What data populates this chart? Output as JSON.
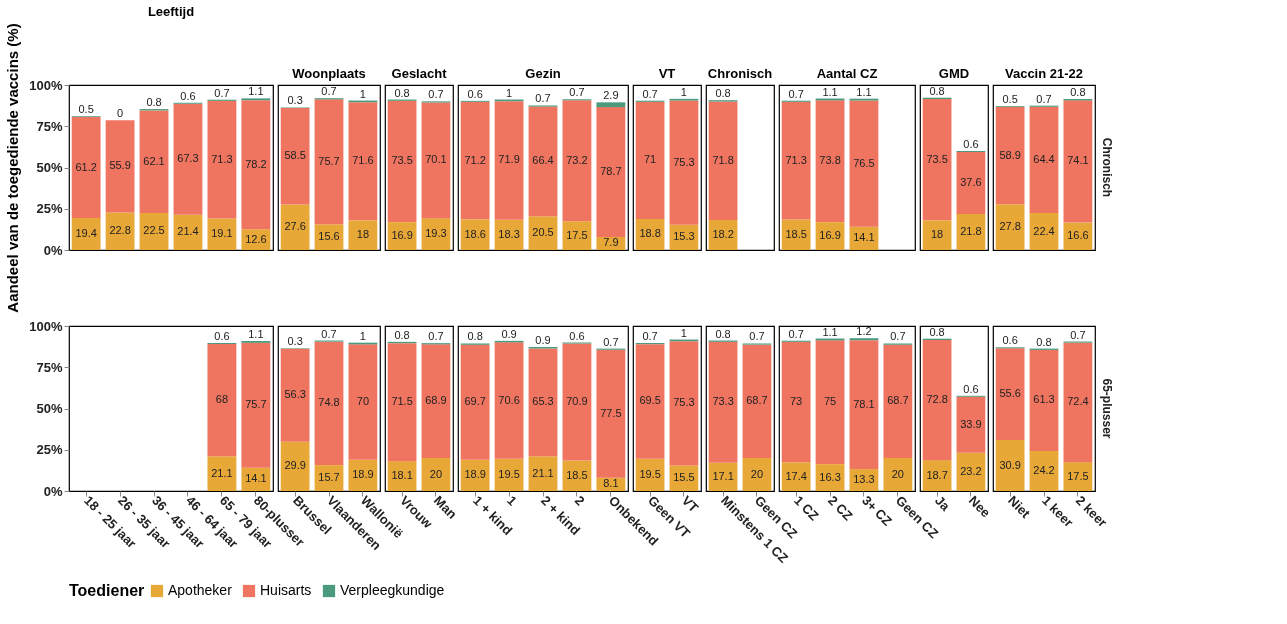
{
  "chart_data": [
    {
      "type": "bar",
      "stacked": true,
      "title": "Leeftijd",
      "ylabel": "Aandeel van de toegediende vaccins (%)",
      "legend": "bottom",
      "legend_title": "Toediener",
      "tick_labels": "y",
      "data_labels": true,
      "ylim": [
        0,
        100
      ],
      "yticks": [
        {
          "value": 0,
          "label": "0%"
        },
        {
          "value": 25,
          "label": "25%"
        },
        {
          "value": 50,
          "label": "50%"
        },
        {
          "value": 75,
          "label": "75%"
        },
        {
          "value": 100,
          "label": "100%"
        }
      ],
      "categories": [
        "18 - 25 jaar",
        "26 - 35 jaar",
        "36 - 45 jaar",
        "46 - 64 jaar",
        "65 - 79 jaar",
        "80-plusser"
      ],
      "series": [
        {
          "name": "Apotheker",
          "color": "#e8a838",
          "values": [
            19.4,
            22.8,
            22.5,
            21.4,
            19.1,
            12.6
          ]
        },
        {
          "name": "Huisarts",
          "color": "#f07561",
          "values": [
            61.2,
            55.9,
            62.1,
            67.3,
            71.3,
            78.2
          ]
        },
        {
          "name": "Verpleegkundige",
          "color": "#4a9a7e",
          "values": [
            0.5,
            0,
            0.8,
            0.6,
            0.7,
            1.1
          ]
        }
      ]
    },
    {
      "type": "bar",
      "stacked": true,
      "title": "Woonplaats",
      "tick_labels": false,
      "data_labels": true,
      "ylim": [
        0,
        100
      ],
      "categories": [
        "Brussel",
        "Vlaanderen",
        "Wallonië"
      ],
      "series": [
        {
          "name": "Apotheker",
          "color": "#e8a838",
          "values": [
            27.6,
            15.6,
            18
          ]
        },
        {
          "name": "Huisarts",
          "color": "#f07561",
          "values": [
            58.5,
            75.7,
            71.6
          ]
        },
        {
          "name": "Verpleegkundige",
          "color": "#4a9a7e",
          "values": [
            0.3,
            0.7,
            1
          ]
        }
      ]
    },
    {
      "type": "bar",
      "stacked": true,
      "title": "Geslacht",
      "tick_labels": false,
      "data_labels": true,
      "ylim": [
        0,
        100
      ],
      "categories": [
        "Vrouw",
        "Man"
      ],
      "series": [
        {
          "name": "Apotheker",
          "color": "#e8a838",
          "values": [
            16.9,
            19.3
          ]
        },
        {
          "name": "Huisarts",
          "color": "#f07561",
          "values": [
            73.5,
            70.1
          ]
        },
        {
          "name": "Verpleegkundige",
          "color": "#4a9a7e",
          "values": [
            0.8,
            0.7
          ]
        }
      ]
    },
    {
      "type": "bar",
      "stacked": true,
      "title": "Gezin",
      "tick_labels": false,
      "data_labels": true,
      "ylim": [
        0,
        100
      ],
      "categories": [
        "1 + kind",
        "1",
        "2 + kind",
        "2",
        "Onbekend"
      ],
      "series": [
        {
          "name": "Apotheker",
          "color": "#e8a838",
          "values": [
            18.6,
            18.3,
            20.5,
            17.5,
            7.9
          ]
        },
        {
          "name": "Huisarts",
          "color": "#f07561",
          "values": [
            71.2,
            71.9,
            66.4,
            73.2,
            78.7
          ]
        },
        {
          "name": "Verpleegkundige",
          "color": "#4a9a7e",
          "values": [
            0.6,
            1,
            0.7,
            0.7,
            2.9
          ]
        }
      ]
    },
    {
      "type": "bar",
      "stacked": true,
      "title": "VT",
      "tick_labels": false,
      "data_labels": true,
      "ylim": [
        0,
        100
      ],
      "categories": [
        "Geen VT",
        "VT"
      ],
      "series": [
        {
          "name": "Apotheker",
          "color": "#e8a838",
          "values": [
            18.8,
            15.3
          ]
        },
        {
          "name": "Huisarts",
          "color": "#f07561",
          "values": [
            71,
            75.3
          ]
        },
        {
          "name": "Verpleegkundige",
          "color": "#4a9a7e",
          "values": [
            0.7,
            1
          ]
        }
      ]
    },
    {
      "type": "bar",
      "stacked": true,
      "title": "Chronisch",
      "tick_labels": false,
      "data_labels": true,
      "ylim": [
        0,
        100
      ],
      "categories": [
        "Minstens 1 CZ",
        "Geen CZ"
      ],
      "series": [
        {
          "name": "Apotheker",
          "color": "#e8a838",
          "values": [
            18.2,
            null
          ]
        },
        {
          "name": "Huisarts",
          "color": "#f07561",
          "values": [
            71.8,
            null
          ]
        },
        {
          "name": "Verpleegkundige",
          "color": "#4a9a7e",
          "values": [
            0.8,
            null
          ]
        }
      ]
    },
    {
      "type": "bar",
      "stacked": true,
      "title": "Aantal CZ",
      "tick_labels": false,
      "data_labels": true,
      "ylim": [
        0,
        100
      ],
      "categories": [
        "1 CZ",
        "2 CZ",
        "3+ CZ",
        "Geen CZ"
      ],
      "series": [
        {
          "name": "Apotheker",
          "color": "#e8a838",
          "values": [
            18.5,
            16.9,
            14.1,
            null
          ]
        },
        {
          "name": "Huisarts",
          "color": "#f07561",
          "values": [
            71.3,
            73.8,
            76.5,
            null
          ]
        },
        {
          "name": "Verpleegkundige",
          "color": "#4a9a7e",
          "values": [
            0.7,
            1.1,
            1.1,
            null
          ]
        }
      ]
    },
    {
      "type": "bar",
      "stacked": true,
      "title": "GMD",
      "tick_labels": false,
      "data_labels": true,
      "ylim": [
        0,
        100
      ],
      "categories": [
        "Ja",
        "Nee"
      ],
      "series": [
        {
          "name": "Apotheker",
          "color": "#e8a838",
          "values": [
            18,
            21.8
          ]
        },
        {
          "name": "Huisarts",
          "color": "#f07561",
          "values": [
            73.5,
            37.6
          ]
        },
        {
          "name": "Verpleegkundige",
          "color": "#4a9a7e",
          "values": [
            0.8,
            0.6
          ]
        }
      ]
    },
    {
      "type": "bar",
      "stacked": true,
      "title": "Vaccin 21-22",
      "tick_labels": false,
      "data_labels": true,
      "annotations": [
        "Chronisch"
      ],
      "ylim": [
        0,
        100
      ],
      "categories": [
        "Niet",
        "1 keer",
        "2 keer"
      ],
      "series": [
        {
          "name": "Apotheker",
          "color": "#e8a838",
          "values": [
            27.8,
            22.4,
            16.6
          ]
        },
        {
          "name": "Huisarts",
          "color": "#f07561",
          "values": [
            58.9,
            64.4,
            74.1
          ]
        },
        {
          "name": "Verpleegkundige",
          "color": "#4a9a7e",
          "values": [
            0.5,
            0.7,
            0.8
          ]
        }
      ]
    },
    {
      "type": "bar",
      "stacked": true,
      "data_labels": true,
      "ylim": [
        0,
        100
      ],
      "yticks": [
        {
          "value": 0,
          "label": "0%"
        },
        {
          "value": 25,
          "label": "25%"
        },
        {
          "value": 50,
          "label": "50%"
        },
        {
          "value": 75,
          "label": "75%"
        },
        {
          "value": 100,
          "label": "100%"
        }
      ],
      "categories": [
        "18 - 25 jaar",
        "26 - 35 jaar",
        "36 - 45 jaar",
        "46 - 64 jaar",
        "65 - 79 jaar",
        "80-plusser"
      ],
      "series": [
        {
          "name": "Apotheker",
          "color": "#e8a838",
          "values": [
            null,
            null,
            null,
            null,
            21.1,
            14.1
          ]
        },
        {
          "name": "Huisarts",
          "color": "#f07561",
          "values": [
            null,
            null,
            null,
            null,
            68,
            75.7
          ]
        },
        {
          "name": "Verpleegkundige",
          "color": "#4a9a7e",
          "values": [
            null,
            null,
            null,
            null,
            0.6,
            1.1
          ]
        }
      ]
    },
    {
      "type": "bar",
      "stacked": true,
      "tick_labels": "x",
      "data_labels": true,
      "ylim": [
        0,
        100
      ],
      "categories": [
        "Brussel",
        "Vlaanderen",
        "Wallonië"
      ],
      "series": [
        {
          "name": "Apotheker",
          "color": "#e8a838",
          "values": [
            29.9,
            15.7,
            18.9
          ]
        },
        {
          "name": "Huisarts",
          "color": "#f07561",
          "values": [
            56.3,
            74.8,
            70
          ]
        },
        {
          "name": "Verpleegkundige",
          "color": "#4a9a7e",
          "values": [
            0.3,
            0.7,
            1
          ]
        }
      ]
    },
    {
      "type": "bar",
      "stacked": true,
      "tick_labels": "x",
      "data_labels": true,
      "ylim": [
        0,
        100
      ],
      "categories": [
        "Vrouw",
        "Man"
      ],
      "series": [
        {
          "name": "Apotheker",
          "color": "#e8a838",
          "values": [
            18.1,
            20
          ]
        },
        {
          "name": "Huisarts",
          "color": "#f07561",
          "values": [
            71.5,
            68.9
          ]
        },
        {
          "name": "Verpleegkundige",
          "color": "#4a9a7e",
          "values": [
            0.8,
            0.7
          ]
        }
      ]
    },
    {
      "type": "bar",
      "stacked": true,
      "tick_labels": "x",
      "data_labels": true,
      "ylim": [
        0,
        100
      ],
      "categories": [
        "1 + kind",
        "1",
        "2 + kind",
        "2",
        "Onbekend"
      ],
      "series": [
        {
          "name": "Apotheker",
          "color": "#e8a838",
          "values": [
            18.9,
            19.5,
            21.1,
            18.5,
            8.1
          ]
        },
        {
          "name": "Huisarts",
          "color": "#f07561",
          "values": [
            69.7,
            70.6,
            65.3,
            70.9,
            77.5
          ]
        },
        {
          "name": "Verpleegkundige",
          "color": "#4a9a7e",
          "values": [
            0.8,
            0.9,
            0.9,
            0.6,
            0.7
          ]
        }
      ]
    },
    {
      "type": "bar",
      "stacked": true,
      "tick_labels": "x",
      "data_labels": true,
      "ylim": [
        0,
        100
      ],
      "categories": [
        "Geen VT",
        "VT"
      ],
      "series": [
        {
          "name": "Apotheker",
          "color": "#e8a838",
          "values": [
            19.5,
            15.5
          ]
        },
        {
          "name": "Huisarts",
          "color": "#f07561",
          "values": [
            69.5,
            75.3
          ]
        },
        {
          "name": "Verpleegkundige",
          "color": "#4a9a7e",
          "values": [
            0.7,
            1
          ]
        }
      ]
    },
    {
      "type": "bar",
      "stacked": true,
      "tick_labels": "x",
      "data_labels": true,
      "ylim": [
        0,
        100
      ],
      "categories": [
        "Minstens 1 CZ",
        "Geen CZ"
      ],
      "series": [
        {
          "name": "Apotheker",
          "color": "#e8a838",
          "values": [
            17.1,
            20
          ]
        },
        {
          "name": "Huisarts",
          "color": "#f07561",
          "values": [
            73.3,
            68.7
          ]
        },
        {
          "name": "Verpleegkundige",
          "color": "#4a9a7e",
          "values": [
            0.8,
            0.7
          ]
        }
      ]
    },
    {
      "type": "bar",
      "stacked": true,
      "tick_labels": "x",
      "data_labels": true,
      "ylim": [
        0,
        100
      ],
      "categories": [
        "1 CZ",
        "2 CZ",
        "3+ CZ",
        "Geen CZ"
      ],
      "series": [
        {
          "name": "Apotheker",
          "color": "#e8a838",
          "values": [
            17.4,
            16.3,
            13.3,
            20
          ]
        },
        {
          "name": "Huisarts",
          "color": "#f07561",
          "values": [
            73,
            75,
            78.1,
            68.7
          ]
        },
        {
          "name": "Verpleegkundige",
          "color": "#4a9a7e",
          "values": [
            0.7,
            1.1,
            1.2,
            0.7
          ]
        }
      ]
    },
    {
      "type": "bar",
      "stacked": true,
      "tick_labels": "x",
      "data_labels": true,
      "ylim": [
        0,
        100
      ],
      "categories": [
        "Ja",
        "Nee"
      ],
      "series": [
        {
          "name": "Apotheker",
          "color": "#e8a838",
          "values": [
            18.7,
            23.2
          ]
        },
        {
          "name": "Huisarts",
          "color": "#f07561",
          "values": [
            72.8,
            33.9
          ]
        },
        {
          "name": "Verpleegkundige",
          "color": "#4a9a7e",
          "values": [
            0.8,
            0.6
          ]
        }
      ]
    },
    {
      "type": "bar",
      "stacked": true,
      "tick_labels": "x",
      "data_labels": true,
      "annotations": [
        "65-plusser"
      ],
      "ylim": [
        0,
        100
      ],
      "categories": [
        "Niet",
        "1 keer",
        "2 keer"
      ],
      "series": [
        {
          "name": "Apotheker",
          "color": "#e8a838",
          "values": [
            30.9,
            24.2,
            17.5
          ]
        },
        {
          "name": "Huisarts",
          "color": "#f07561",
          "values": [
            55.6,
            61.3,
            72.4
          ]
        },
        {
          "name": "Verpleegkundige",
          "color": "#4a9a7e",
          "values": [
            0.6,
            0.8,
            0.7
          ]
        }
      ]
    }
  ]
}
